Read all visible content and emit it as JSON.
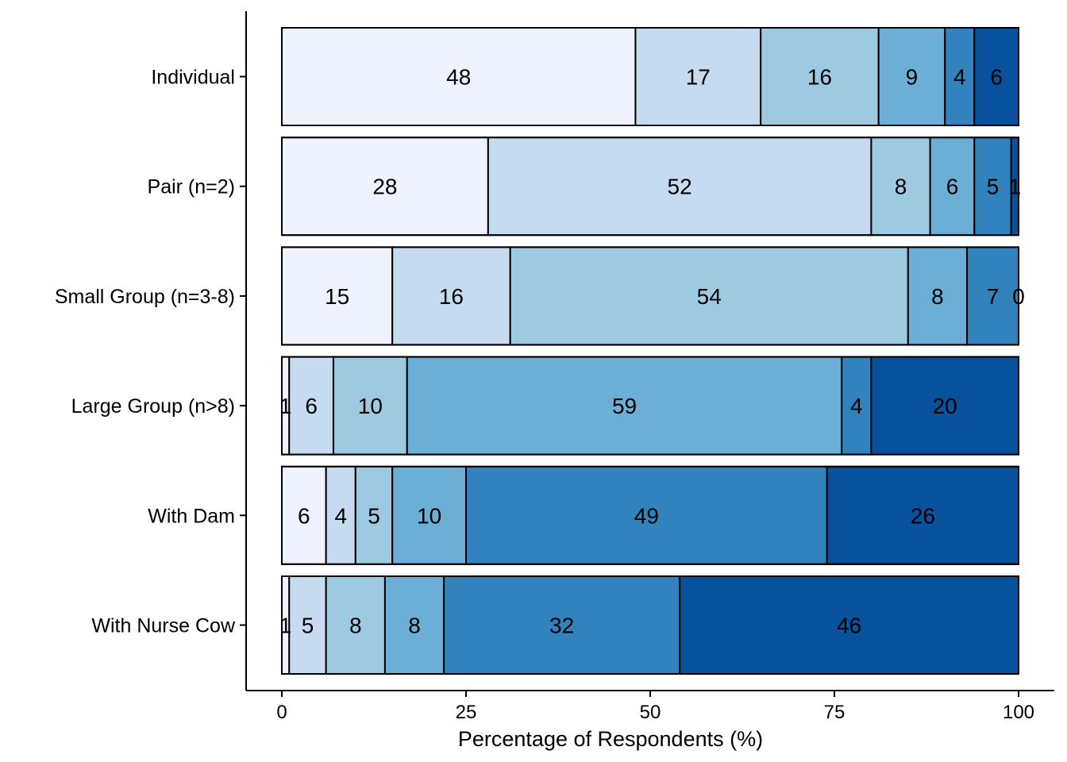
{
  "chart_data": {
    "type": "bar",
    "orientation": "horizontal",
    "stacked": true,
    "categories": [
      "Individual",
      "Pair (n=2)",
      "Small Group (n=3-8)",
      "Large Group (n>8)",
      "With Dam",
      "With Nurse Cow"
    ],
    "values": [
      [
        48,
        17,
        16,
        9,
        4,
        6
      ],
      [
        28,
        52,
        8,
        6,
        5,
        1
      ],
      [
        15,
        16,
        54,
        8,
        7,
        0
      ],
      [
        1,
        6,
        10,
        59,
        4,
        20
      ],
      [
        6,
        4,
        5,
        10,
        49,
        26
      ],
      [
        1,
        5,
        8,
        8,
        32,
        46
      ]
    ],
    "colors": [
      "#eff3ff",
      "#c6dbef",
      "#9ecae1",
      "#6baed6",
      "#3182bd",
      "#08519c"
    ],
    "xlabel": "Percentage of Respondents (%)",
    "ylabel": "",
    "xlim": [
      0,
      100
    ],
    "xticks": [
      0,
      25,
      50,
      75,
      100
    ],
    "grid": false,
    "legend": "none"
  }
}
